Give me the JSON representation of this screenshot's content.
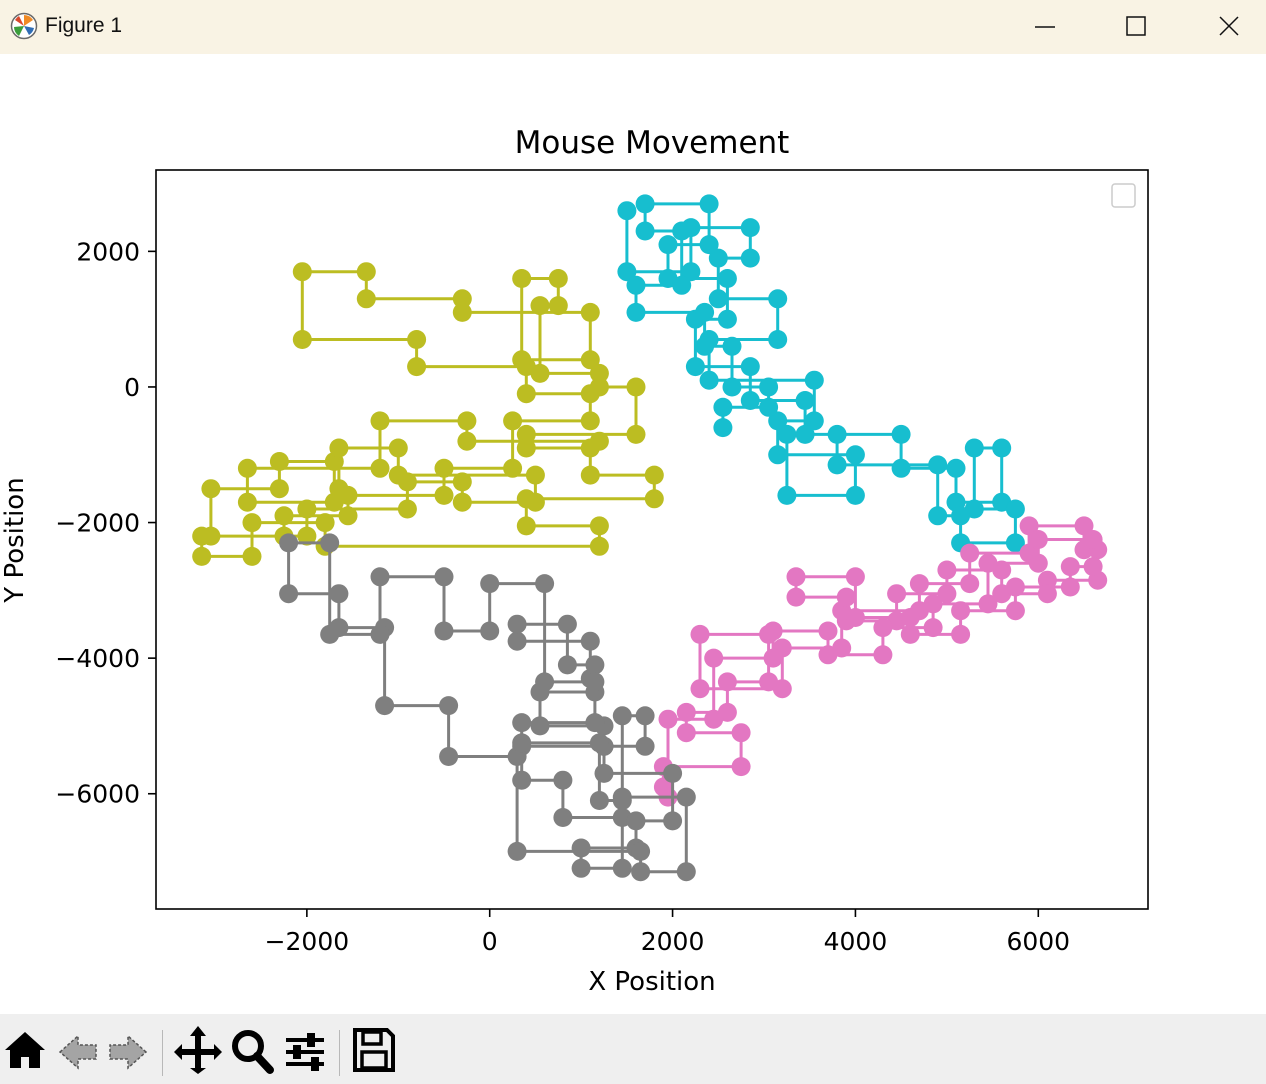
{
  "window": {
    "title": "Figure 1",
    "controls": [
      "minimize",
      "maximize",
      "close"
    ]
  },
  "toolbar": {
    "buttons": [
      "home-icon",
      "back-icon",
      "forward-icon",
      "pan-icon",
      "zoom-icon",
      "configure-subplots-icon",
      "save-icon"
    ]
  },
  "chart_data": {
    "type": "line",
    "title": "Mouse Movement",
    "xlabel": "X Position",
    "ylabel": "Y Position",
    "xlim": [
      -3650,
      7200
    ],
    "ylim": [
      -7700,
      3200
    ],
    "xticks": [
      -2000,
      0,
      2000,
      4000,
      6000
    ],
    "yticks": [
      2000,
      0,
      -2000,
      -4000,
      -6000
    ],
    "xtick_labels": [
      "−2000",
      "0",
      "2000",
      "4000",
      "6000"
    ],
    "ytick_labels": [
      "2000",
      "0",
      "−2000",
      "−4000",
      "−6000"
    ],
    "grid": false,
    "legend": {
      "placement": "top-right",
      "entries": []
    },
    "marker": "circle",
    "step_path": true,
    "series": [
      {
        "color": "#bcbd22",
        "x": [
          1200,
          -250,
          -250,
          -1200,
          -1200,
          -2650,
          -2650,
          -1700,
          -1700,
          -2300,
          -2300,
          -3050,
          -3050,
          -2250,
          -2250,
          -1550,
          -1550,
          -500,
          -500,
          250,
          250,
          1100,
          1100,
          400,
          400,
          -800,
          -800,
          -2050,
          -2050,
          -1350,
          -1350,
          -300,
          -300,
          1100,
          1100,
          350,
          350,
          750,
          750,
          550,
          550,
          1200,
          1200,
          1600,
          1600,
          400,
          400,
          1100,
          1100,
          1800,
          1800,
          400,
          400,
          1200,
          1200,
          -1800,
          -1800,
          -2600,
          -2600,
          -3150,
          -3150,
          -2000,
          -2000,
          -900,
          -900,
          -300,
          -300,
          500,
          500,
          -1000,
          -1000,
          -1650,
          -1650
        ],
        "y": [
          -800,
          -800,
          -500,
          -500,
          -1200,
          -1200,
          -1700,
          -1700,
          -1100,
          -1100,
          -1500,
          -1500,
          -2200,
          -2200,
          -1900,
          -1900,
          -1600,
          -1600,
          -1200,
          -1200,
          -500,
          -500,
          -100,
          -100,
          300,
          300,
          700,
          700,
          1700,
          1700,
          1300,
          1300,
          1100,
          1100,
          400,
          400,
          1600,
          1600,
          1200,
          1200,
          200,
          200,
          0,
          0,
          -700,
          -700,
          -900,
          -900,
          -1300,
          -1300,
          -1650,
          -1650,
          -2050,
          -2050,
          -2350,
          -2350,
          -2000,
          -2000,
          -2500,
          -2500,
          -2200,
          -2200,
          -1800,
          -1800,
          -1400,
          -1400,
          -1700,
          -1700,
          -1300,
          -1300,
          -900,
          -900,
          -1500
        ]
      },
      {
        "color": "#17becf",
        "x": [
          1500,
          1500,
          2200,
          2200,
          2850,
          2850,
          2500,
          2500,
          3150,
          3150,
          2400,
          2400,
          3550,
          3550,
          3150,
          3150,
          4000,
          4000,
          3250,
          3250,
          4500,
          4500,
          5100,
          5100,
          5600,
          5600,
          5300,
          5300,
          5750,
          5750,
          5150,
          5150,
          4900,
          4900,
          3800,
          3800,
          3450,
          3450,
          2850,
          2850,
          2250,
          2250,
          2600,
          2600,
          1950,
          1950,
          2400,
          2400,
          1700,
          1700,
          2100,
          2100,
          1600,
          1600,
          2350,
          2350,
          2650,
          2650,
          3050,
          3050,
          2550,
          2550
        ],
        "y": [
          2600,
          1700,
          1700,
          2350,
          2350,
          1900,
          1900,
          1300,
          1300,
          700,
          700,
          100,
          100,
          -500,
          -500,
          -1000,
          -1000,
          -1600,
          -1600,
          -700,
          -700,
          -1200,
          -1200,
          -1700,
          -1700,
          -900,
          -900,
          -1800,
          -1800,
          -2300,
          -2300,
          -1900,
          -1900,
          -1150,
          -1150,
          -700,
          -700,
          -200,
          -200,
          300,
          300,
          1000,
          1000,
          1600,
          1600,
          2100,
          2100,
          2700,
          2700,
          2300,
          2300,
          1500,
          1500,
          1100,
          1100,
          600,
          600,
          0,
          0,
          -300,
          -300,
          -600
        ]
      },
      {
        "color": "#e377c2",
        "x": [
          1900,
          1900,
          2750,
          2750,
          2150,
          2150,
          2600,
          2600,
          3050,
          3050,
          2300,
          2300,
          3200,
          3200,
          3850,
          3850,
          4700,
          4700,
          5250,
          5250,
          5900,
          5900,
          6500,
          6500,
          6650,
          6650,
          6100,
          6100,
          5600,
          5600,
          5000,
          5000,
          4450,
          4450,
          3900,
          3900,
          3350,
          3350,
          4000,
          4000,
          4600,
          4600,
          5150,
          5150,
          5750,
          5750,
          6350,
          6350,
          6600,
          6600,
          6000,
          6000,
          5450,
          5450,
          4850,
          4850,
          4300,
          4300,
          3700,
          3700,
          3100,
          3100,
          2450,
          2450,
          1950,
          1950
        ],
        "y": [
          -5900,
          -5600,
          -5600,
          -5100,
          -5100,
          -4800,
          -4800,
          -4350,
          -4350,
          -3650,
          -3650,
          -4450,
          -4450,
          -3850,
          -3850,
          -3300,
          -3300,
          -2900,
          -2900,
          -2450,
          -2450,
          -2050,
          -2050,
          -2400,
          -2400,
          -2850,
          -2850,
          -3050,
          -3050,
          -2700,
          -2700,
          -3050,
          -3050,
          -3450,
          -3450,
          -3100,
          -3100,
          -2800,
          -2800,
          -3400,
          -3400,
          -3650,
          -3650,
          -3300,
          -3300,
          -2950,
          -2950,
          -2650,
          -2650,
          -2250,
          -2250,
          -2600,
          -2600,
          -3200,
          -3200,
          -3550,
          -3550,
          -3950,
          -3950,
          -3600,
          -3600,
          -4000,
          -4000,
          -4900,
          -4900,
          -6050
        ]
      },
      {
        "color": "#7f7f7f",
        "x": [
          1100,
          1100,
          300,
          300,
          850,
          850,
          1150,
          1150,
          550,
          550,
          1250,
          1250,
          350,
          350,
          800,
          800,
          1450,
          1450,
          1000,
          1000,
          1600,
          1600,
          2000,
          2000,
          1250,
          1250,
          1700,
          1700,
          1450,
          1450,
          2150,
          2150,
          1650,
          1650,
          300,
          300,
          -450,
          -450,
          -1150,
          -1150,
          -1650,
          -1650,
          -2200,
          -2200,
          -1750,
          -1750,
          -1200,
          -1200,
          -500,
          -500,
          0,
          0,
          600,
          600,
          1150,
          1150,
          350,
          350,
          1200,
          1200,
          1450
        ],
        "y": [
          -4300,
          -3750,
          -3750,
          -3500,
          -3500,
          -4100,
          -4100,
          -4500,
          -4500,
          -5000,
          -5000,
          -5300,
          -5300,
          -5800,
          -5800,
          -6350,
          -6350,
          -7100,
          -7100,
          -6800,
          -6800,
          -6400,
          -6400,
          -5700,
          -5700,
          -5300,
          -5300,
          -4850,
          -4850,
          -6050,
          -6050,
          -7150,
          -7150,
          -6850,
          -6850,
          -5450,
          -5450,
          -4700,
          -4700,
          -3550,
          -3550,
          -3050,
          -3050,
          -2300,
          -2300,
          -3650,
          -3650,
          -2800,
          -2800,
          -3600,
          -3600,
          -2900,
          -2900,
          -4350,
          -4350,
          -4950,
          -4950,
          -5250,
          -5250,
          -6100,
          -6100
        ]
      }
    ]
  }
}
